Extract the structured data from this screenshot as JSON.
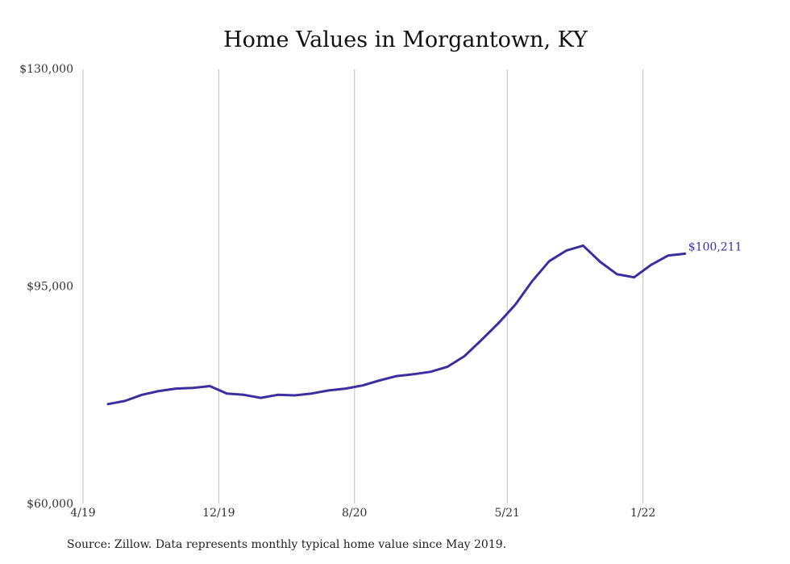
{
  "chart_data": {
    "type": "line",
    "title": "Home Values in Morgantown, KY",
    "xlabel": "",
    "ylabel": "",
    "ylim": [
      60000,
      130000
    ],
    "yticks": [
      60000,
      95000,
      130000
    ],
    "ytick_labels": [
      "$60,000",
      "$95,000",
      "$130,000"
    ],
    "xticks": [
      {
        "label": "4/19",
        "index": -1
      },
      {
        "label": "12/19",
        "index": 7
      },
      {
        "label": "8/20",
        "index": 15
      },
      {
        "label": "5/21",
        "index": 24
      },
      {
        "label": "1/22",
        "index": 32
      }
    ],
    "grid": "vertical",
    "line_color": "#3a2f9e",
    "series": [
      {
        "values": [
          76000,
          76500,
          77500,
          78100,
          78500,
          78600,
          78900,
          77700,
          77500,
          77000,
          77500,
          77400,
          77700,
          78200,
          78500,
          79000,
          79800,
          80500,
          80800,
          81200,
          82000,
          83700,
          86300,
          89000,
          92000,
          95800,
          99000,
          100700,
          101500,
          98900,
          96900,
          96400,
          98400,
          99900,
          100211
        ]
      }
    ],
    "end_label": "$100,211"
  },
  "footer": {
    "source": "Source: Zillow. Data represents monthly typical home value since May 2019."
  }
}
